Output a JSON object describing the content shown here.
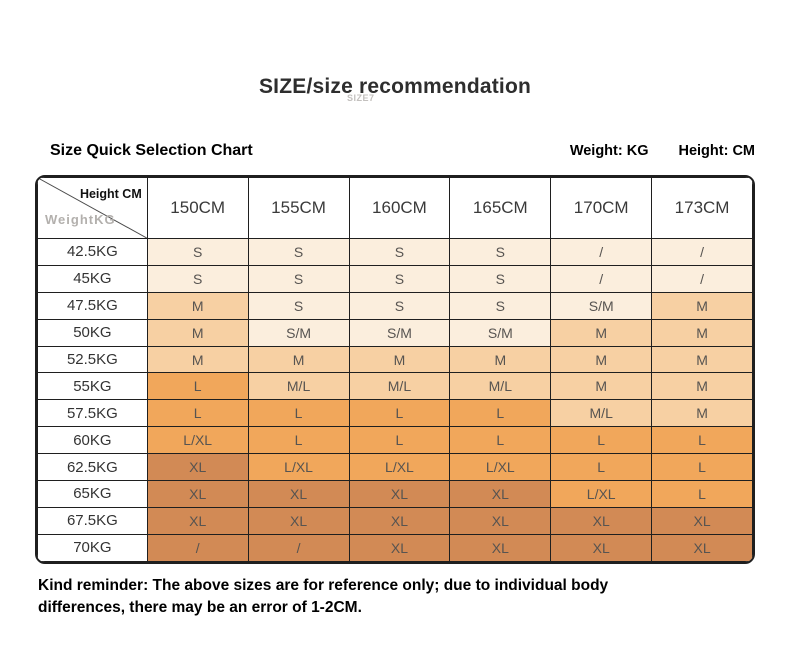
{
  "page": {
    "title": "SIZE/size recommendation",
    "watermark": "SIZE7",
    "section_title": "Size Quick Selection Chart",
    "weight_unit_label": "Weight: KG",
    "height_unit_label": "Height: CM",
    "reminder": "Kind reminder: The above sizes are for reference only; due to individual body differences, there may be an error of 1-2CM."
  },
  "chart_data": {
    "type": "table",
    "title": "Size Quick Selection Chart",
    "corner": {
      "col_header": "Height CM",
      "row_header": "WeightKG"
    },
    "columns": [
      "150CM",
      "155CM",
      "160CM",
      "165CM",
      "170CM",
      "173CM"
    ],
    "rows": [
      {
        "weight": "42.5KG",
        "sizes": [
          "S",
          "S",
          "S",
          "S",
          "/",
          "/"
        ],
        "tiers": [
          0,
          0,
          0,
          0,
          0,
          0
        ]
      },
      {
        "weight": "45KG",
        "sizes": [
          "S",
          "S",
          "S",
          "S",
          "/",
          "/"
        ],
        "tiers": [
          0,
          0,
          0,
          0,
          0,
          0
        ]
      },
      {
        "weight": "47.5KG",
        "sizes": [
          "M",
          "S",
          "S",
          "S",
          "S/M",
          "M"
        ],
        "tiers": [
          1,
          0,
          0,
          0,
          0,
          1
        ]
      },
      {
        "weight": "50KG",
        "sizes": [
          "M",
          "S/M",
          "S/M",
          "S/M",
          "M",
          "M"
        ],
        "tiers": [
          1,
          0,
          0,
          0,
          1,
          1
        ]
      },
      {
        "weight": "52.5KG",
        "sizes": [
          "M",
          "M",
          "M",
          "M",
          "M",
          "M"
        ],
        "tiers": [
          1,
          1,
          1,
          1,
          1,
          1
        ]
      },
      {
        "weight": "55KG",
        "sizes": [
          "L",
          "M/L",
          "M/L",
          "M/L",
          "M",
          "M"
        ],
        "tiers": [
          2,
          1,
          1,
          1,
          1,
          1
        ]
      },
      {
        "weight": "57.5KG",
        "sizes": [
          "L",
          "L",
          "L",
          "L",
          "M/L",
          "M"
        ],
        "tiers": [
          2,
          2,
          2,
          2,
          1,
          1
        ]
      },
      {
        "weight": "60KG",
        "sizes": [
          "L/XL",
          "L",
          "L",
          "L",
          "L",
          "L"
        ],
        "tiers": [
          2,
          2,
          2,
          2,
          2,
          2
        ]
      },
      {
        "weight": "62.5KG",
        "sizes": [
          "XL",
          "L/XL",
          "L/XL",
          "L/XL",
          "L",
          "L"
        ],
        "tiers": [
          3,
          2,
          2,
          2,
          2,
          2
        ]
      },
      {
        "weight": "65KG",
        "sizes": [
          "XL",
          "XL",
          "XL",
          "XL",
          "L/XL",
          "L"
        ],
        "tiers": [
          3,
          3,
          3,
          3,
          2,
          2
        ]
      },
      {
        "weight": "67.5KG",
        "sizes": [
          "XL",
          "XL",
          "XL",
          "XL",
          "XL",
          "XL"
        ],
        "tiers": [
          3,
          3,
          3,
          3,
          3,
          3
        ]
      },
      {
        "weight": "70KG",
        "sizes": [
          "/",
          "/",
          "XL",
          "XL",
          "XL",
          "XL"
        ],
        "tiers": [
          3,
          3,
          3,
          3,
          3,
          3
        ]
      }
    ],
    "tier_colors": [
      "#fbeedd",
      "#f7d0a3",
      "#f1a75b",
      "#d28a55"
    ]
  }
}
